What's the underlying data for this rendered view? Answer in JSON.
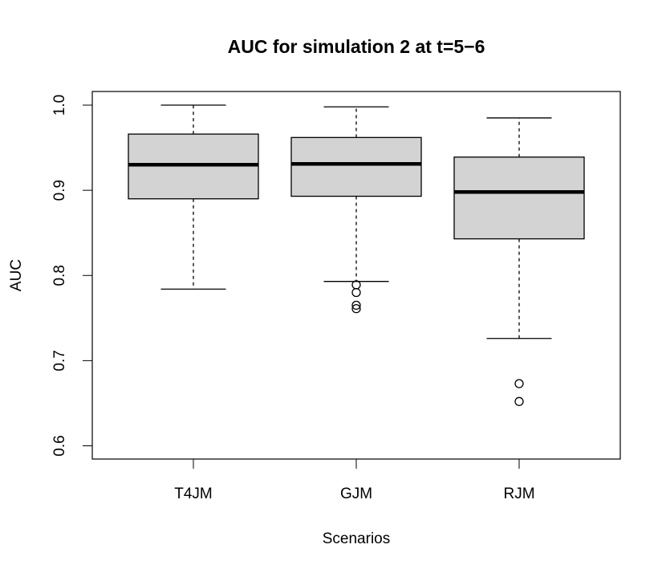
{
  "chart_data": {
    "type": "box",
    "title": "AUC for simulation 2 at t=5−6",
    "xlabel": "Scenarios",
    "ylabel": "AUC",
    "ylim": [
      0.6,
      1.0
    ],
    "yticks": [
      "0.6",
      "0.7",
      "0.8",
      "0.9",
      "1.0"
    ],
    "categories": [
      "T4JM",
      "GJM",
      "RJM"
    ],
    "boxes": [
      {
        "name": "T4JM",
        "whisker_low": 0.784,
        "q1": 0.89,
        "median": 0.93,
        "q3": 0.966,
        "whisker_high": 1.0,
        "outliers": []
      },
      {
        "name": "GJM",
        "whisker_low": 0.793,
        "q1": 0.893,
        "median": 0.931,
        "q3": 0.962,
        "whisker_high": 0.998,
        "outliers": [
          0.789,
          0.78,
          0.765,
          0.761
        ]
      },
      {
        "name": "RJM",
        "whisker_low": 0.726,
        "q1": 0.843,
        "median": 0.898,
        "q3": 0.939,
        "whisker_high": 0.985,
        "outliers": [
          0.673,
          0.652
        ]
      }
    ],
    "colors": {
      "box_fill": "#d3d3d3",
      "stroke": "#000000"
    },
    "grid": false,
    "legend": "none"
  }
}
